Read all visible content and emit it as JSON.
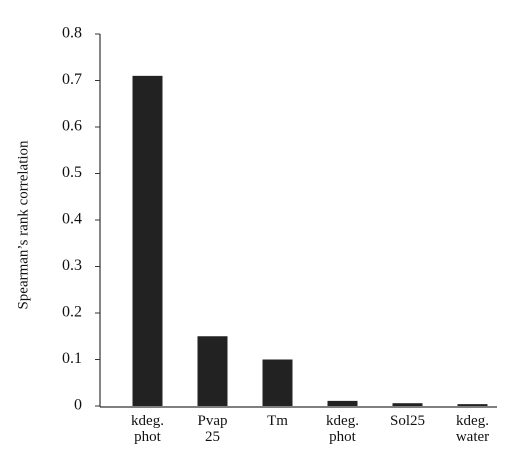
{
  "chart_data": {
    "type": "bar",
    "y_label": "Spearman’s rank correlation",
    "categories": [
      "kdeg.\nphot",
      "Pvap\n25",
      "Tm",
      "kdeg.\nphot",
      "Sol25",
      "kdeg.\nwater"
    ],
    "values": [
      0.71,
      0.15,
      0.1,
      0.011,
      0.006,
      0.004
    ],
    "color": "#222222",
    "ylim": [
      0,
      0.8
    ],
    "yticks": [
      0,
      0.1,
      0.2,
      0.3,
      0.4,
      0.5,
      0.6,
      0.7,
      0.8
    ],
    "grid": false
  }
}
